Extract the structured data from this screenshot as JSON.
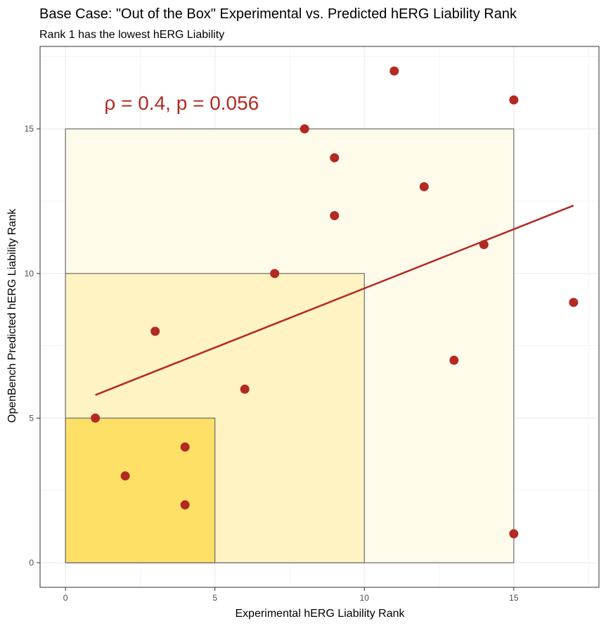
{
  "chart_data": {
    "type": "scatter",
    "title": "Base Case: \"Out of the Box\" Experimental vs. Predicted hERG Liability Rank",
    "subtitle": "Rank 1 has the lowest hERG Liability",
    "xlabel": "Experimental hERG Liability Rank",
    "ylabel": "OpenBench Predicted hERG Liability Rank",
    "xlim": [
      -0.85,
      17.85
    ],
    "ylim": [
      -0.85,
      17.85
    ],
    "x_ticks": [
      0,
      5,
      10,
      15
    ],
    "y_ticks": [
      0,
      5,
      10,
      15
    ],
    "x_tick_labels": [
      "0",
      "5",
      "10",
      "15"
    ],
    "y_tick_labels": [
      "0",
      "5",
      "10",
      "15"
    ],
    "grid": true,
    "annotation": {
      "text": "ρ = 0.4, p = 0.056",
      "x": 1.3,
      "y": 15.9,
      "color": "#b22a22"
    },
    "regions": [
      {
        "x": [
          0,
          15
        ],
        "y": [
          0,
          15
        ],
        "fill": "#fffbeb",
        "stroke": "#6b6b6b"
      },
      {
        "x": [
          0,
          10
        ],
        "y": [
          0,
          10
        ],
        "fill": "#fff3c4",
        "stroke": "#6b6b6b"
      },
      {
        "x": [
          0,
          5
        ],
        "y": [
          0,
          5
        ],
        "fill": "#ffe066",
        "stroke": "#6b6b6b"
      }
    ],
    "series": [
      {
        "color": "#b22a22",
        "points": [
          {
            "x": 1,
            "y": 5
          },
          {
            "x": 2,
            "y": 3
          },
          {
            "x": 3,
            "y": 8
          },
          {
            "x": 4,
            "y": 4
          },
          {
            "x": 4,
            "y": 2
          },
          {
            "x": 6,
            "y": 6
          },
          {
            "x": 7,
            "y": 10
          },
          {
            "x": 8,
            "y": 15
          },
          {
            "x": 9,
            "y": 14
          },
          {
            "x": 9,
            "y": 12
          },
          {
            "x": 11,
            "y": 17
          },
          {
            "x": 12,
            "y": 13
          },
          {
            "x": 13,
            "y": 7
          },
          {
            "x": 14,
            "y": 11
          },
          {
            "x": 15,
            "y": 16
          },
          {
            "x": 15,
            "y": 1
          },
          {
            "x": 17,
            "y": 9
          }
        ]
      }
    ],
    "trend_line": {
      "x": [
        1,
        17
      ],
      "y": [
        5.8,
        12.35
      ],
      "color": "#b22a22"
    }
  }
}
